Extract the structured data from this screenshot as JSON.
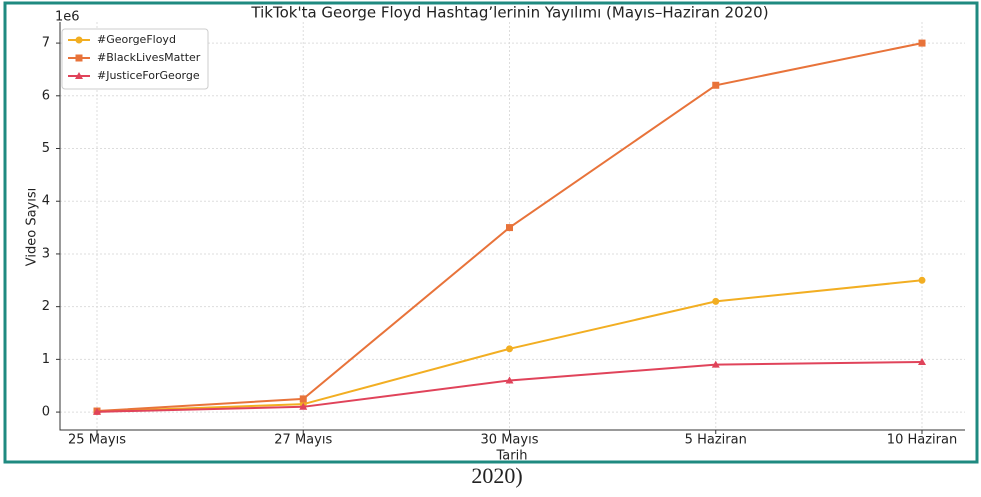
{
  "chart_data": {
    "type": "line",
    "title": "TikTok'ta George Floyd Hashtag’lerinin Yayılımı (Mayıs–Haziran 2020)",
    "x_label": "Tarih",
    "y_label": "Video Sayısı",
    "y_offset_label": "1e6",
    "categories": [
      "25 Mayıs",
      "27 Mayıs",
      "30 Mayıs",
      "5 Haziran",
      "10 Haziran"
    ],
    "series": [
      {
        "name": "#GeorgeFloyd",
        "color": "#f2ae22",
        "marker": "circle",
        "values": [
          0.01,
          0.15,
          1.2,
          2.1,
          2.5
        ]
      },
      {
        "name": "#BlackLivesMatter",
        "color": "#e8733a",
        "marker": "square",
        "values": [
          0.02,
          0.25,
          3.5,
          6.2,
          7.0
        ]
      },
      {
        "name": "#JusticeForGeorge",
        "color": "#e0435a",
        "marker": "triangle",
        "values": [
          0.005,
          0.1,
          0.6,
          0.9,
          0.95
        ]
      }
    ],
    "ylim": [
      -0.34,
      7.4
    ],
    "yticks": [
      0,
      1,
      2,
      3,
      4,
      5,
      6,
      7
    ],
    "grid": true,
    "legend": "upper-left"
  },
  "caption": "2020)"
}
